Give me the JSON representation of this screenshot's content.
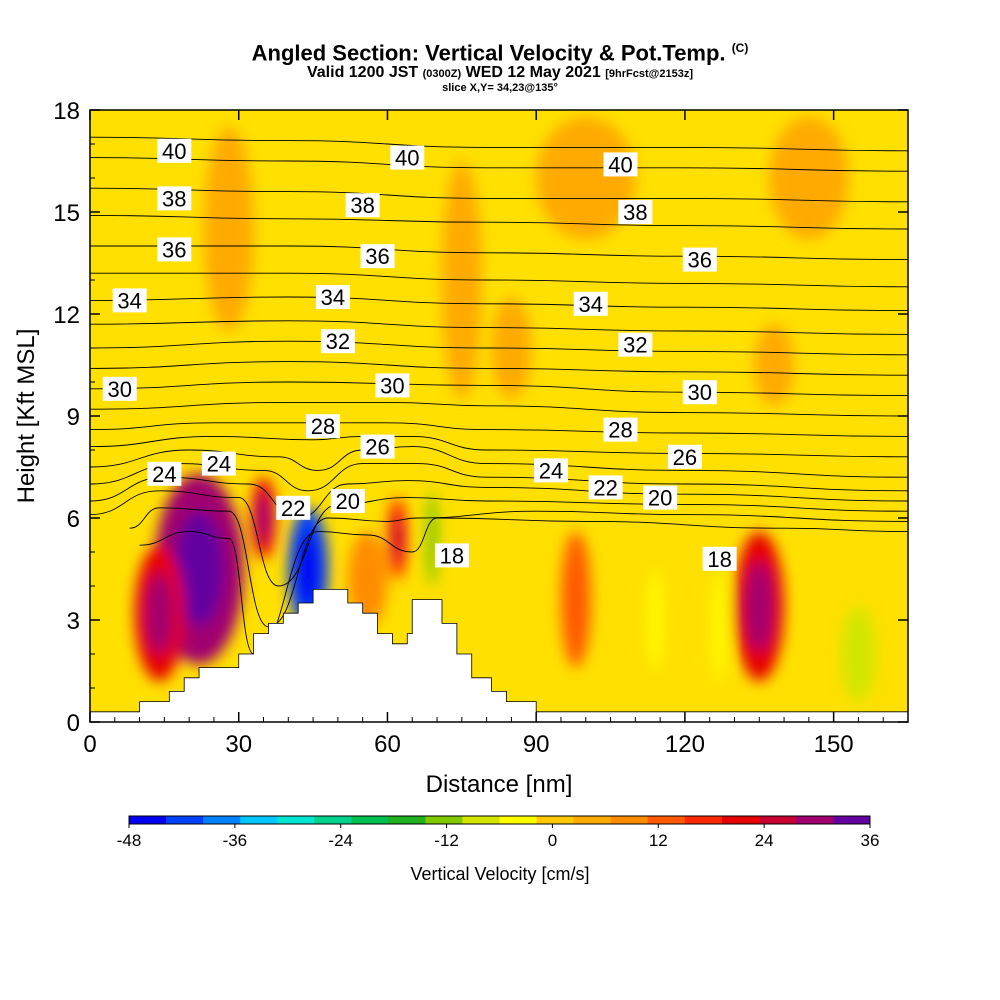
{
  "header": {
    "title": "Angled Section: Vertical Velocity & Pot.Temp.",
    "title_mark": "(C)",
    "valid_prefix": "Valid 1200 JST",
    "valid_utc": "(0300Z)",
    "valid_date": "WED 12 May 2021",
    "forecast": "[9hrFcst@2153z]",
    "slice": "slice X,Y= 34,23@135°"
  },
  "chart_data": {
    "type": "heatmap",
    "xlabel": "Distance [nm]",
    "ylabel": "Height [Kft MSL]",
    "xlim": [
      0,
      165
    ],
    "ylim": [
      0,
      18
    ],
    "x_ticks": [
      0,
      30,
      60,
      90,
      120,
      150
    ],
    "y_ticks": [
      0,
      3,
      6,
      9,
      12,
      15,
      18
    ],
    "background_field": "Vertical Velocity [cm/s]",
    "colorbar": {
      "label": "Vertical Velocity [cm/s]",
      "ticks": [
        -48,
        -36,
        -24,
        -12,
        0,
        12,
        24,
        36
      ],
      "colors": [
        "#0000f0",
        "#0040ff",
        "#0080ff",
        "#00c8ff",
        "#00e6d2",
        "#00d28c",
        "#00c050",
        "#20b020",
        "#80c800",
        "#d2e600",
        "#ffff00",
        "#ffc800",
        "#ffaa00",
        "#ff8c00",
        "#ff5a00",
        "#ff2800",
        "#e60000",
        "#c80032",
        "#a0006e",
        "#6400a0"
      ]
    },
    "terrain_profile": [
      [
        0,
        0.3
      ],
      [
        10,
        0.3
      ],
      [
        10,
        0.6
      ],
      [
        16,
        0.6
      ],
      [
        16,
        0.9
      ],
      [
        19,
        0.9
      ],
      [
        19,
        1.3
      ],
      [
        22,
        1.3
      ],
      [
        22,
        1.6
      ],
      [
        30,
        1.6
      ],
      [
        30,
        2.0
      ],
      [
        33,
        2.0
      ],
      [
        33,
        2.6
      ],
      [
        36,
        2.6
      ],
      [
        36,
        2.9
      ],
      [
        39,
        2.9
      ],
      [
        39,
        3.2
      ],
      [
        42,
        3.2
      ],
      [
        42,
        3.5
      ],
      [
        45,
        3.5
      ],
      [
        45,
        3.9
      ],
      [
        52,
        3.9
      ],
      [
        52,
        3.5
      ],
      [
        55,
        3.5
      ],
      [
        55,
        3.2
      ],
      [
        58,
        3.2
      ],
      [
        58,
        2.6
      ],
      [
        61,
        2.6
      ],
      [
        61,
        2.3
      ],
      [
        64,
        2.3
      ],
      [
        64,
        2.6
      ],
      [
        65,
        2.6
      ],
      [
        65,
        3.6
      ],
      [
        71,
        3.6
      ],
      [
        71,
        2.9
      ],
      [
        74,
        2.9
      ],
      [
        74,
        2.0
      ],
      [
        77,
        2.0
      ],
      [
        77,
        1.3
      ],
      [
        81,
        1.3
      ],
      [
        81,
        0.9
      ],
      [
        84,
        0.9
      ],
      [
        84,
        0.6
      ],
      [
        90,
        0.6
      ],
      [
        90,
        0.3
      ],
      [
        165,
        0.3
      ]
    ],
    "velocity_cells": [
      {
        "x": 22,
        "y": 4.5,
        "rx": 9,
        "ry": 2.8,
        "value": 30
      },
      {
        "x": 14,
        "y": 3.2,
        "rx": 5,
        "ry": 2.0,
        "value": 20
      },
      {
        "x": 35,
        "y": 6.0,
        "rx": 2.5,
        "ry": 1.2,
        "value": 22
      },
      {
        "x": 44,
        "y": 4.5,
        "rx": 4,
        "ry": 1.8,
        "value": -40
      },
      {
        "x": 56,
        "y": 4.2,
        "rx": 4,
        "ry": 1.4,
        "value": 8
      },
      {
        "x": 62,
        "y": 5.4,
        "rx": 2,
        "ry": 1.2,
        "value": 18
      },
      {
        "x": 69,
        "y": 5.4,
        "rx": 1.2,
        "ry": 1.4,
        "value": -12
      },
      {
        "x": 98,
        "y": 3.6,
        "rx": 3,
        "ry": 2.0,
        "value": 14
      },
      {
        "x": 114,
        "y": 3.0,
        "rx": 1.3,
        "ry": 1.5,
        "value": -6
      },
      {
        "x": 127,
        "y": 2.8,
        "rx": 1.3,
        "ry": 1.6,
        "value": -4
      },
      {
        "x": 135,
        "y": 3.4,
        "rx": 5,
        "ry": 2.2,
        "value": 22
      },
      {
        "x": 155,
        "y": 2.0,
        "rx": 3.5,
        "ry": 1.4,
        "value": -8
      },
      {
        "x": 28,
        "y": 14.5,
        "rx": 5,
        "ry": 3.0,
        "value": 6
      },
      {
        "x": 75,
        "y": 13.0,
        "rx": 4,
        "ry": 3.5,
        "value": 6
      },
      {
        "x": 100,
        "y": 16.0,
        "rx": 10,
        "ry": 1.8,
        "value": 5
      },
      {
        "x": 145,
        "y": 16.0,
        "rx": 8,
        "ry": 1.8,
        "value": 5
      },
      {
        "x": 138,
        "y": 10.5,
        "rx": 4,
        "ry": 1.2,
        "value": 4
      },
      {
        "x": 85,
        "y": 11.0,
        "rx": 4,
        "ry": 1.5,
        "value": 4
      }
    ],
    "contour_labels": [
      {
        "text": "40",
        "x": 17,
        "y": 16.8
      },
      {
        "text": "40",
        "x": 64,
        "y": 16.6
      },
      {
        "text": "40",
        "x": 107,
        "y": 16.4
      },
      {
        "text": "38",
        "x": 17,
        "y": 15.4
      },
      {
        "text": "38",
        "x": 55,
        "y": 15.2
      },
      {
        "text": "38",
        "x": 110,
        "y": 15.0
      },
      {
        "text": "36",
        "x": 17,
        "y": 13.9
      },
      {
        "text": "36",
        "x": 58,
        "y": 13.7
      },
      {
        "text": "36",
        "x": 123,
        "y": 13.6
      },
      {
        "text": "34",
        "x": 8,
        "y": 12.4
      },
      {
        "text": "34",
        "x": 49,
        "y": 12.5
      },
      {
        "text": "34",
        "x": 101,
        "y": 12.3
      },
      {
        "text": "32",
        "x": 50,
        "y": 11.2
      },
      {
        "text": "32",
        "x": 110,
        "y": 11.1
      },
      {
        "text": "30",
        "x": 6,
        "y": 9.8
      },
      {
        "text": "30",
        "x": 61,
        "y": 9.9
      },
      {
        "text": "30",
        "x": 123,
        "y": 9.7
      },
      {
        "text": "28",
        "x": 47,
        "y": 8.7
      },
      {
        "text": "28",
        "x": 107,
        "y": 8.6
      },
      {
        "text": "26",
        "x": 58,
        "y": 8.1
      },
      {
        "text": "26",
        "x": 120,
        "y": 7.8
      },
      {
        "text": "24",
        "x": 15,
        "y": 7.3
      },
      {
        "text": "24",
        "x": 26,
        "y": 7.6
      },
      {
        "text": "24",
        "x": 93,
        "y": 7.4
      },
      {
        "text": "22",
        "x": 41,
        "y": 6.3
      },
      {
        "text": "22",
        "x": 104,
        "y": 6.9
      },
      {
        "text": "20",
        "x": 52,
        "y": 6.5
      },
      {
        "text": "20",
        "x": 115,
        "y": 6.6
      },
      {
        "text": "18",
        "x": 73,
        "y": 4.9
      },
      {
        "text": "18",
        "x": 127,
        "y": 4.8
      }
    ],
    "theta_lines": [
      {
        "value": 40,
        "points": [
          [
            0,
            17.2
          ],
          [
            40,
            17.1
          ],
          [
            80,
            16.9
          ],
          [
            120,
            16.9
          ],
          [
            165,
            16.8
          ]
        ]
      },
      {
        "value": 39,
        "points": [
          [
            0,
            16.6
          ],
          [
            40,
            16.5
          ],
          [
            80,
            16.3
          ],
          [
            120,
            16.3
          ],
          [
            165,
            16.2
          ]
        ]
      },
      {
        "value": 38,
        "points": [
          [
            0,
            15.7
          ],
          [
            40,
            15.6
          ],
          [
            80,
            15.4
          ],
          [
            120,
            15.4
          ],
          [
            165,
            15.3
          ]
        ]
      },
      {
        "value": 37,
        "points": [
          [
            0,
            14.9
          ],
          [
            40,
            14.8
          ],
          [
            80,
            14.7
          ],
          [
            120,
            14.6
          ],
          [
            165,
            14.5
          ]
        ]
      },
      {
        "value": 36,
        "points": [
          [
            0,
            14.0
          ],
          [
            40,
            14.0
          ],
          [
            80,
            13.8
          ],
          [
            120,
            13.7
          ],
          [
            165,
            13.6
          ]
        ]
      },
      {
        "value": 35,
        "points": [
          [
            0,
            13.2
          ],
          [
            40,
            13.2
          ],
          [
            80,
            13.0
          ],
          [
            120,
            12.9
          ],
          [
            165,
            12.8
          ]
        ]
      },
      {
        "value": 34,
        "points": [
          [
            0,
            12.4
          ],
          [
            40,
            12.5
          ],
          [
            80,
            12.3
          ],
          [
            120,
            12.2
          ],
          [
            165,
            12.1
          ]
        ]
      },
      {
        "value": 33,
        "points": [
          [
            0,
            11.7
          ],
          [
            40,
            11.8
          ],
          [
            80,
            11.6
          ],
          [
            120,
            11.5
          ],
          [
            165,
            11.4
          ]
        ]
      },
      {
        "value": 32,
        "points": [
          [
            0,
            11.0
          ],
          [
            40,
            11.2
          ],
          [
            80,
            11.0
          ],
          [
            120,
            10.9
          ],
          [
            165,
            10.8
          ]
        ]
      },
      {
        "value": 31,
        "points": [
          [
            0,
            10.4
          ],
          [
            40,
            10.6
          ],
          [
            80,
            10.4
          ],
          [
            120,
            10.3
          ],
          [
            165,
            10.2
          ]
        ]
      },
      {
        "value": 30,
        "points": [
          [
            0,
            9.8
          ],
          [
            40,
            10.0
          ],
          [
            80,
            9.9
          ],
          [
            120,
            9.7
          ],
          [
            165,
            9.6
          ]
        ]
      },
      {
        "value": 29,
        "points": [
          [
            0,
            9.2
          ],
          [
            40,
            9.4
          ],
          [
            60,
            9.4
          ],
          [
            80,
            9.3
          ],
          [
            120,
            9.1
          ],
          [
            165,
            9.0
          ]
        ]
      },
      {
        "value": 28,
        "points": [
          [
            0,
            8.6
          ],
          [
            25,
            8.8
          ],
          [
            45,
            8.8
          ],
          [
            60,
            8.8
          ],
          [
            80,
            8.6
          ],
          [
            120,
            8.5
          ],
          [
            165,
            8.4
          ]
        ]
      },
      {
        "value": 27,
        "points": [
          [
            0,
            8.1
          ],
          [
            25,
            8.4
          ],
          [
            45,
            8.3
          ],
          [
            55,
            8.4
          ],
          [
            65,
            8.4
          ],
          [
            80,
            8.0
          ],
          [
            120,
            7.9
          ],
          [
            165,
            7.8
          ]
        ]
      },
      {
        "value": 26,
        "points": [
          [
            0,
            7.5
          ],
          [
            20,
            8.0
          ],
          [
            38,
            7.8
          ],
          [
            46,
            7.4
          ],
          [
            55,
            8.0
          ],
          [
            65,
            8.1
          ],
          [
            80,
            7.6
          ],
          [
            120,
            7.4
          ],
          [
            165,
            7.2
          ]
        ]
      },
      {
        "value": 25,
        "points": [
          [
            0,
            7.0
          ],
          [
            18,
            7.6
          ],
          [
            35,
            7.4
          ],
          [
            44,
            6.8
          ],
          [
            55,
            7.6
          ],
          [
            66,
            7.6
          ],
          [
            80,
            7.2
          ],
          [
            120,
            7.0
          ],
          [
            165,
            6.8
          ]
        ]
      },
      {
        "value": 24,
        "points": [
          [
            0,
            6.5
          ],
          [
            15,
            7.2
          ],
          [
            32,
            7.0
          ],
          [
            42,
            6.0
          ],
          [
            52,
            7.0
          ],
          [
            64,
            7.1
          ],
          [
            80,
            6.9
          ],
          [
            120,
            6.7
          ],
          [
            165,
            6.5
          ]
        ]
      },
      {
        "value": 23,
        "points": [
          [
            0,
            6.1
          ],
          [
            14,
            6.8
          ],
          [
            30,
            6.6
          ],
          [
            38,
            4.0
          ],
          [
            50,
            6.4
          ],
          [
            64,
            6.6
          ],
          [
            80,
            6.5
          ],
          [
            120,
            6.4
          ],
          [
            165,
            6.2
          ]
        ]
      },
      {
        "value": 22,
        "points": [
          [
            8,
            5.7
          ],
          [
            14,
            6.3
          ],
          [
            28,
            6.2
          ],
          [
            36,
            2.8
          ],
          [
            48,
            6.0
          ],
          [
            60,
            5.9
          ],
          [
            66,
            6.0
          ],
          [
            90,
            6.2
          ],
          [
            120,
            6.1
          ],
          [
            165,
            5.9
          ]
        ]
      },
      {
        "value": 21,
        "points": [
          [
            10,
            5.2
          ],
          [
            20,
            5.6
          ],
          [
            28,
            5.4
          ],
          [
            33,
            2.0
          ],
          [
            46,
            5.6
          ],
          [
            56,
            5.5
          ],
          [
            65,
            5.0
          ],
          [
            70,
            6.0
          ],
          [
            100,
            5.9
          ],
          [
            140,
            5.7
          ],
          [
            165,
            5.6
          ]
        ]
      }
    ]
  }
}
